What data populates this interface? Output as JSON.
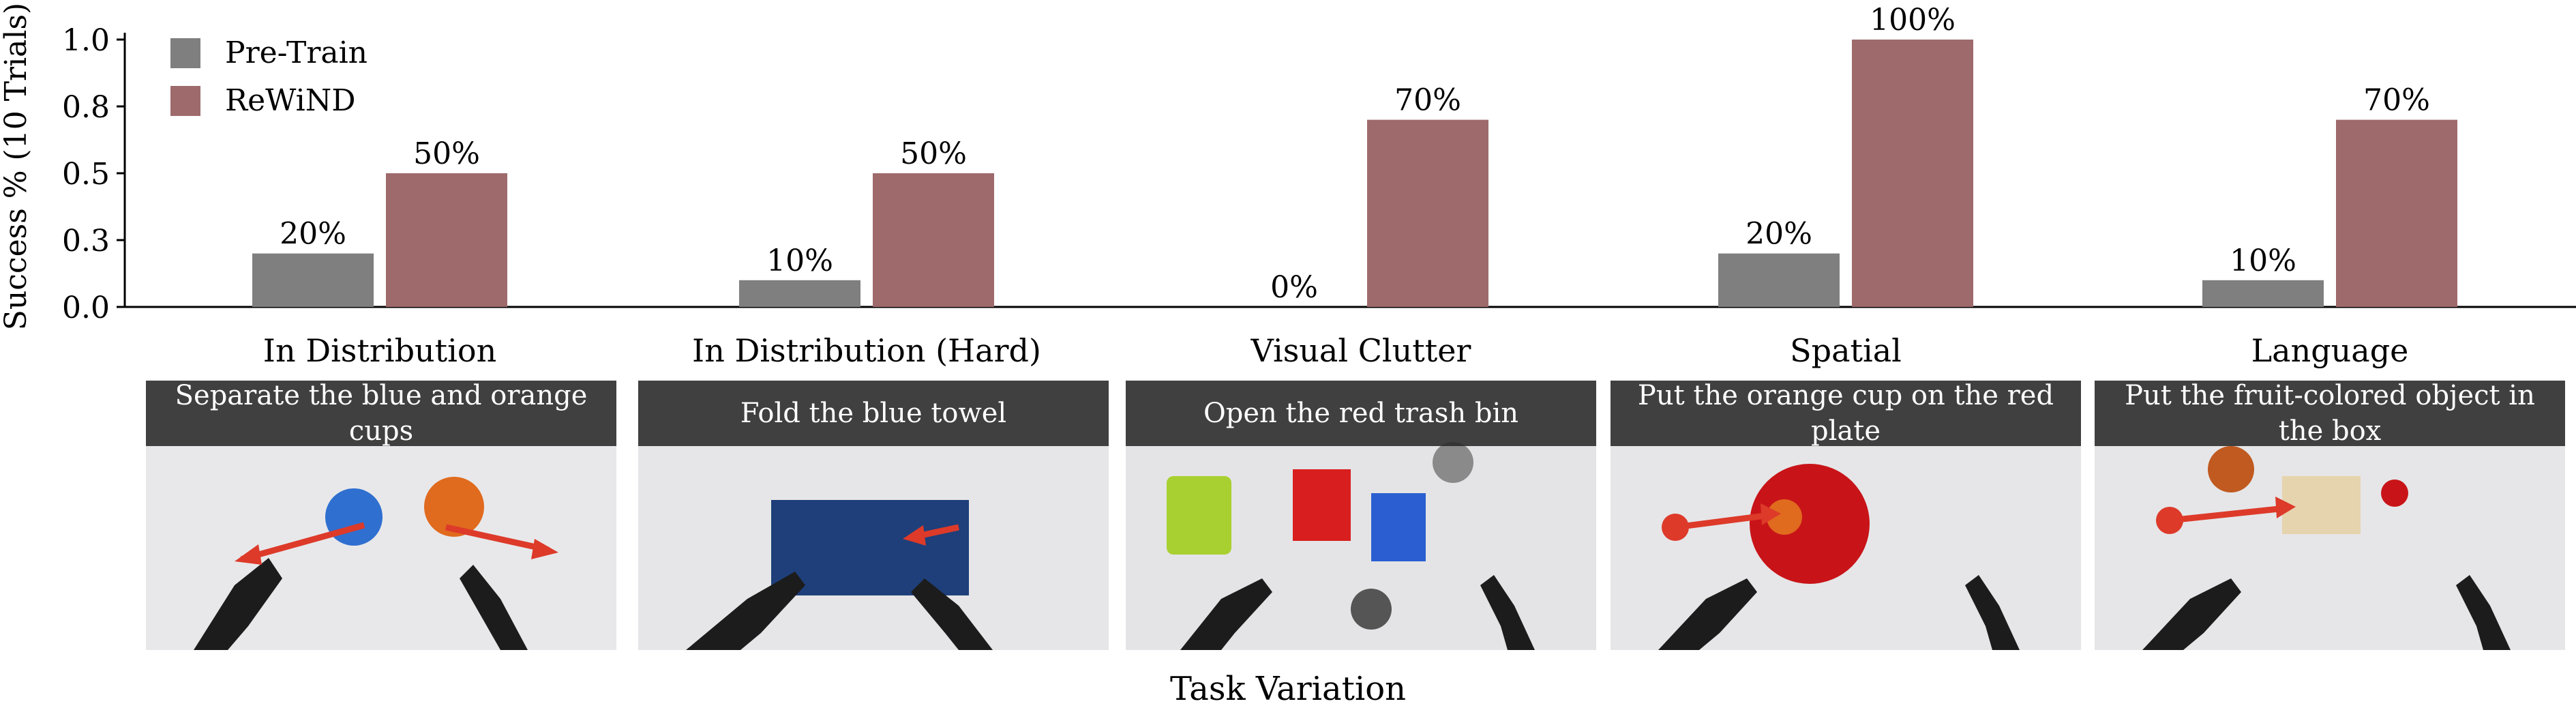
{
  "chart_data": {
    "type": "bar",
    "categories": [
      "In Distribution",
      "In Distribution (Hard)",
      "Visual Clutter",
      "Spatial",
      "Language"
    ],
    "series": [
      {
        "name": "Pre-Train",
        "values": [
          0.2,
          0.1,
          0.0,
          0.2,
          0.1
        ],
        "labels": [
          "20%",
          "10%",
          "0%",
          "20%",
          "10%"
        ],
        "color": "#7f7f7f"
      },
      {
        "name": "ReWiND",
        "values": [
          0.5,
          0.5,
          0.7,
          1.0,
          0.7
        ],
        "labels": [
          "50%",
          "50%",
          "70%",
          "100%",
          "70%"
        ],
        "color": "#9e6a6c"
      }
    ],
    "xlabel": "Task Variation",
    "ylabel": "Success % (10 Trials)",
    "ylim": [
      0,
      1.0
    ],
    "yticks": [
      "0.0",
      "0.3",
      "0.5",
      "0.8",
      "1.0"
    ],
    "ytick_values": [
      0.0,
      0.25,
      0.5,
      0.75,
      1.0
    ],
    "legend_position": "top-left",
    "grid": false
  },
  "panels": [
    {
      "caption": "Separate the blue and orange cups",
      "scene": "blue and orange cups with two arrows pointing apart"
    },
    {
      "caption": "Fold the blue towel",
      "scene": "blue towel with arrow"
    },
    {
      "caption": "Open the red trash bin",
      "scene": "red trash bin among clutter"
    },
    {
      "caption": "Put the orange cup on the red plate",
      "scene": "orange cup moved onto red plate"
    },
    {
      "caption": "Put the fruit-colored object in the box",
      "scene": "orange object moved into box"
    }
  ],
  "colors": {
    "arrow": "#dd3a2a",
    "caption_bg": "#2a2a2a"
  }
}
